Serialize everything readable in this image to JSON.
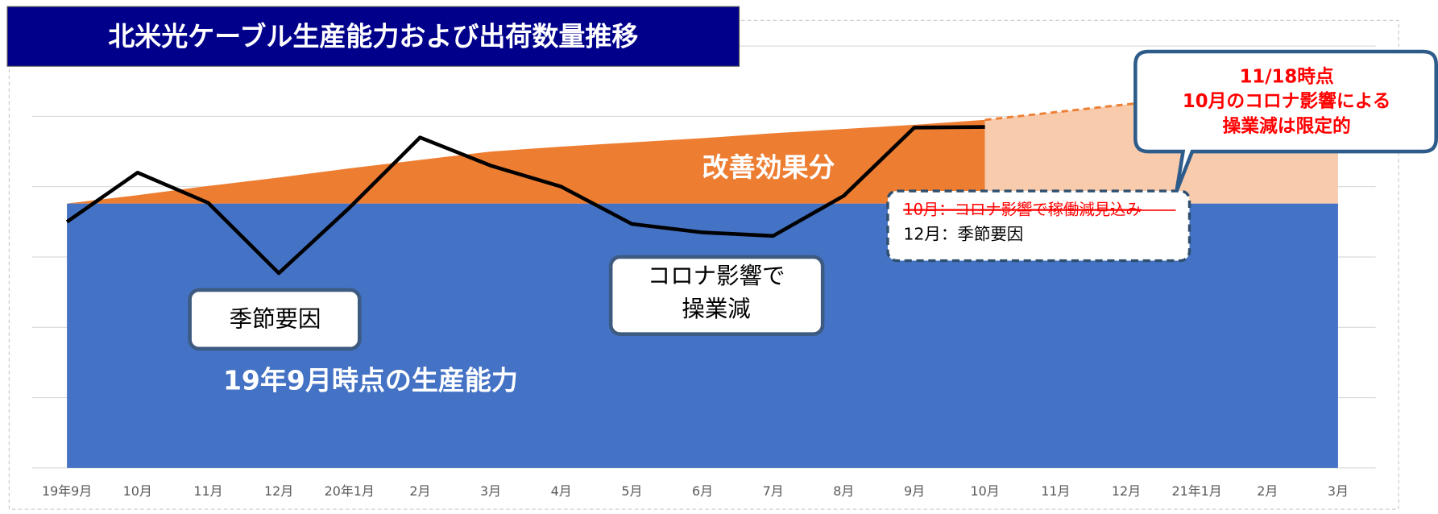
{
  "chart_data": {
    "type": "area",
    "title": "北米光ケーブル生産能力および出荷数量推移",
    "categories": [
      "19年9月",
      "10月",
      "11月",
      "12月",
      "20年1月",
      "2月",
      "3月",
      "4月",
      "5月",
      "6月",
      "7月",
      "8月",
      "9月",
      "10月",
      "11月",
      "12月",
      "21年1月",
      "2月",
      "3月"
    ],
    "series": [
      {
        "name": "19年9月時点の生産能力",
        "color": "#4472c4",
        "kind": "area",
        "values": [
          3.76,
          3.76,
          3.76,
          3.76,
          3.76,
          3.76,
          3.76,
          3.76,
          3.76,
          3.76,
          3.76,
          3.76,
          3.76,
          3.76,
          3.76,
          3.76,
          3.76,
          3.76,
          3.76
        ]
      },
      {
        "name": "改善効果分",
        "color": "#ed7d31",
        "kind": "stacked-area",
        "values": [
          0,
          0.12,
          0.25,
          0.37,
          0.5,
          0.62,
          0.74,
          0.81,
          0.87,
          0.93,
          1.0,
          1.06,
          1.12,
          1.19,
          null,
          null,
          null,
          null,
          null
        ]
      },
      {
        "color": "#f8cbad",
        "line_color": "#ed7d31",
        "kind": "forecast-area",
        "values": [
          null,
          null,
          null,
          null,
          null,
          null,
          null,
          null,
          null,
          null,
          null,
          null,
          null,
          1.19,
          1.3,
          1.41,
          1.51,
          1.62,
          1.72
        ]
      },
      {
        "color": "#000000",
        "kind": "line",
        "values": [
          3.5,
          4.2,
          3.77,
          2.77,
          3.7,
          4.7,
          4.3,
          4.0,
          3.47,
          3.35,
          3.3,
          3.87,
          4.84,
          4.85,
          null,
          null,
          null,
          null,
          null
        ]
      }
    ],
    "ylim": [
      0,
      6
    ],
    "grid": [
      0,
      1,
      2,
      3,
      4,
      5,
      6
    ],
    "annotations": {
      "seasonal": "季節要因",
      "covid": [
        "コロナ影響で",
        "操業減"
      ],
      "improvement": "改善効果分",
      "capacity": "19年9月時点の生産能力",
      "note": [
        "10月：コロナ影響で稼働減見込み",
        "12月：季節要因"
      ],
      "callout": [
        "11/18時点",
        "10月のコロナ影響による",
        "操業減は限定的"
      ]
    }
  }
}
